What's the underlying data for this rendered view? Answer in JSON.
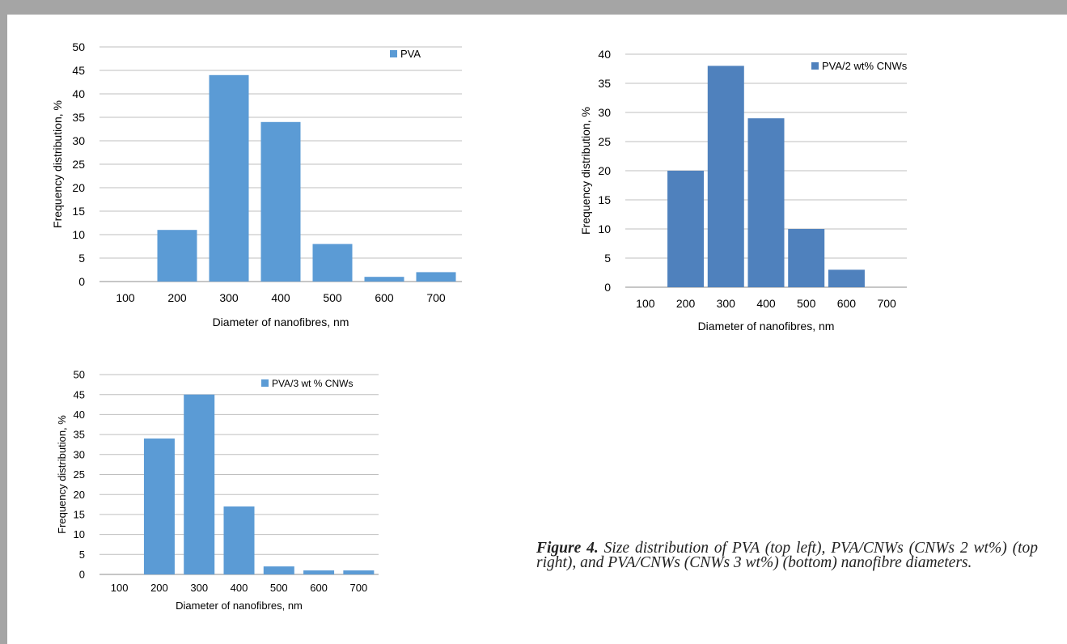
{
  "chart_data": [
    {
      "type": "bar",
      "categories": [
        "100",
        "200",
        "300",
        "400",
        "500",
        "600",
        "700"
      ],
      "series": [
        {
          "name": "PVA",
          "values": [
            0,
            11,
            44,
            34,
            8,
            1,
            2
          ],
          "color": "#5b9bd5"
        }
      ],
      "xlabel": "Diameter of nanofibres, nm",
      "ylabel": "Frequency distribution, %",
      "ylim": [
        0,
        50
      ],
      "ytick_step": 5,
      "grid": true,
      "legend_position": "top-right"
    },
    {
      "type": "bar",
      "categories": [
        "100",
        "200",
        "300",
        "400",
        "500",
        "600",
        "700"
      ],
      "series": [
        {
          "name": "PVA/2 wt% CNWs",
          "values": [
            0,
            20,
            38,
            29,
            10,
            3,
            0
          ],
          "color": "#4f81bd"
        }
      ],
      "xlabel": "Diameter of nanofibres, nm",
      "ylabel": "Frequency distribution, %",
      "ylim": [
        0,
        40
      ],
      "ytick_step": 5,
      "grid": true,
      "legend_position": "top-right"
    },
    {
      "type": "bar",
      "categories": [
        "100",
        "200",
        "300",
        "400",
        "500",
        "600",
        "700"
      ],
      "series": [
        {
          "name": "PVA/3 wt % CNWs",
          "values": [
            0,
            34,
            45,
            17,
            2,
            1,
            1
          ],
          "color": "#5b9bd5"
        }
      ],
      "xlabel": "Diameter of nanofibres, nm",
      "ylabel": "Frequency distribution, %",
      "ylim": [
        0,
        50
      ],
      "ytick_step": 5,
      "grid": true,
      "legend_position": "top-right"
    }
  ],
  "caption": {
    "label": "Figure 4.",
    "text": "Size distribution of PVA (top left), PVA/CNWs (CNWs 2 wt%) (top right), and PVA/CNWs (CNWs 3 wt%) (bottom) nanofibre diameters."
  },
  "frame_color": "#a5a5a5"
}
